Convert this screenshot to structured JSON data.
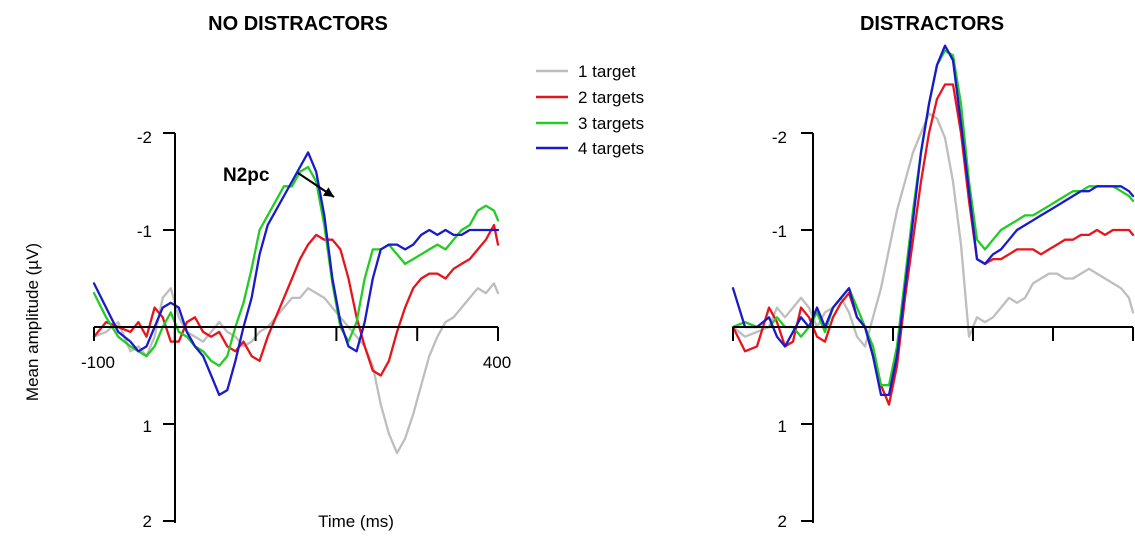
{
  "chart_data": [
    {
      "type": "line",
      "title": "NO DISTRACTORS",
      "xlabel": "Time (ms)",
      "ylabel": "Mean amplitude  (µV)",
      "xlim": [
        -100,
        400
      ],
      "ylim": [
        2,
        -2.5
      ],
      "y_axis_inverted": true,
      "xticks": [
        -100,
        0,
        100,
        200,
        300,
        400
      ],
      "xtick_labels": [
        "-100",
        "400"
      ],
      "yticks": [
        -2,
        -1,
        1,
        2
      ],
      "ytick_labels": [
        "-2",
        "-1",
        "1",
        "2"
      ],
      "annotations": [
        {
          "text": "N2pc",
          "points_to": {
            "x": 205,
            "y": -1.35
          }
        }
      ],
      "series": [
        {
          "name": "1 target",
          "color": "#bebebe",
          "x": [
            -100,
            -85,
            -70,
            -55,
            -45,
            -35,
            -25,
            -15,
            -5,
            5,
            15,
            25,
            35,
            45,
            55,
            65,
            75,
            85,
            95,
            105,
            115,
            125,
            135,
            145,
            155,
            165,
            175,
            185,
            195,
            205,
            215,
            225,
            235,
            245,
            255,
            265,
            275,
            285,
            295,
            305,
            315,
            325,
            335,
            345,
            355,
            365,
            375,
            385,
            395,
            400
          ],
          "y": [
            0.1,
            0.05,
            -0.05,
            0.25,
            0.2,
            0.3,
            0.1,
            -0.3,
            -0.4,
            -0.1,
            0.05,
            0.1,
            0.15,
            0.05,
            -0.05,
            0.05,
            0.1,
            0.2,
            0.15,
            0.05,
            0.0,
            -0.1,
            -0.2,
            -0.3,
            -0.3,
            -0.4,
            -0.35,
            -0.3,
            -0.2,
            -0.1,
            0.0,
            0.1,
            0.2,
            0.4,
            0.8,
            1.1,
            1.3,
            1.15,
            0.9,
            0.6,
            0.3,
            0.1,
            -0.05,
            -0.1,
            -0.2,
            -0.3,
            -0.4,
            -0.35,
            -0.45,
            -0.35
          ]
        },
        {
          "name": "2 targets",
          "color": "#e8141c",
          "x": [
            -100,
            -85,
            -70,
            -55,
            -45,
            -35,
            -25,
            -15,
            -5,
            5,
            15,
            25,
            35,
            45,
            55,
            65,
            75,
            85,
            95,
            105,
            115,
            125,
            135,
            145,
            155,
            165,
            175,
            185,
            195,
            205,
            215,
            225,
            235,
            245,
            255,
            265,
            275,
            285,
            295,
            305,
            315,
            325,
            335,
            345,
            355,
            365,
            375,
            385,
            395,
            400
          ],
          "y": [
            0.1,
            -0.05,
            0.0,
            0.05,
            -0.05,
            0.1,
            -0.2,
            -0.1,
            0.15,
            0.15,
            -0.05,
            -0.1,
            0.05,
            0.1,
            0.05,
            0.2,
            0.25,
            0.15,
            0.3,
            0.35,
            0.1,
            -0.1,
            -0.3,
            -0.5,
            -0.7,
            -0.85,
            -0.95,
            -0.9,
            -0.9,
            -0.8,
            -0.5,
            -0.1,
            0.2,
            0.45,
            0.5,
            0.35,
            0.05,
            -0.2,
            -0.4,
            -0.5,
            -0.55,
            -0.55,
            -0.5,
            -0.6,
            -0.65,
            -0.7,
            -0.8,
            -0.9,
            -1.05,
            -0.85
          ]
        },
        {
          "name": "3 targets",
          "color": "#22cc22",
          "x": [
            -100,
            -85,
            -70,
            -55,
            -45,
            -35,
            -25,
            -15,
            -5,
            5,
            15,
            25,
            35,
            45,
            55,
            65,
            75,
            85,
            95,
            105,
            115,
            125,
            135,
            145,
            155,
            165,
            175,
            185,
            195,
            205,
            215,
            225,
            235,
            245,
            255,
            265,
            275,
            285,
            295,
            305,
            315,
            325,
            335,
            345,
            355,
            365,
            375,
            385,
            395,
            400
          ],
          "y": [
            -0.35,
            -0.1,
            0.1,
            0.2,
            0.25,
            0.3,
            0.2,
            0.0,
            -0.15,
            0.05,
            0.1,
            0.2,
            0.25,
            0.35,
            0.4,
            0.3,
            0.0,
            -0.25,
            -0.6,
            -1.0,
            -1.15,
            -1.3,
            -1.45,
            -1.45,
            -1.6,
            -1.65,
            -1.5,
            -1.05,
            -0.45,
            0.0,
            0.15,
            -0.05,
            -0.5,
            -0.8,
            -0.8,
            -0.85,
            -0.75,
            -0.65,
            -0.7,
            -0.75,
            -0.8,
            -0.85,
            -0.8,
            -0.9,
            -1.0,
            -1.05,
            -1.2,
            -1.25,
            -1.2,
            -1.1
          ]
        },
        {
          "name": "4 targets",
          "color": "#1a1acc",
          "x": [
            -100,
            -85,
            -70,
            -55,
            -45,
            -35,
            -25,
            -15,
            -5,
            5,
            15,
            25,
            35,
            45,
            55,
            65,
            75,
            85,
            95,
            105,
            115,
            125,
            135,
            145,
            155,
            165,
            175,
            185,
            195,
            205,
            215,
            225,
            235,
            245,
            255,
            265,
            275,
            285,
            295,
            305,
            315,
            325,
            335,
            345,
            355,
            365,
            375,
            385,
            395,
            400
          ],
          "y": [
            -0.45,
            -0.2,
            0.05,
            0.15,
            0.25,
            0.2,
            0.0,
            -0.2,
            -0.25,
            -0.2,
            0.05,
            0.2,
            0.3,
            0.5,
            0.7,
            0.65,
            0.35,
            0.0,
            -0.3,
            -0.75,
            -1.05,
            -1.2,
            -1.35,
            -1.5,
            -1.65,
            -1.8,
            -1.6,
            -1.15,
            -0.5,
            -0.05,
            0.2,
            0.25,
            -0.05,
            -0.5,
            -0.8,
            -0.85,
            -0.85,
            -0.8,
            -0.85,
            -0.95,
            -1.0,
            -0.95,
            -1.0,
            -0.95,
            -0.95,
            -1.0,
            -1.0,
            -1.0,
            -1.0,
            -1.0
          ]
        }
      ]
    },
    {
      "type": "line",
      "title": "DISTRACTORS",
      "xlabel": "",
      "ylabel": "",
      "xlim": [
        -100,
        400
      ],
      "ylim": [
        2,
        -2.5
      ],
      "y_axis_inverted": true,
      "xticks": [
        -100,
        0,
        100,
        200,
        300,
        400
      ],
      "xtick_labels": [],
      "yticks": [
        -2,
        -1,
        1,
        2
      ],
      "ytick_labels": [
        "-2",
        "-1",
        "1",
        "2"
      ],
      "series": [
        {
          "name": "1 target",
          "color": "#bebebe",
          "x": [
            -100,
            -85,
            -70,
            -55,
            -45,
            -35,
            -25,
            -15,
            -5,
            5,
            15,
            25,
            35,
            45,
            55,
            65,
            75,
            85,
            95,
            105,
            115,
            125,
            135,
            145,
            155,
            165,
            175,
            185,
            195,
            205,
            215,
            225,
            235,
            245,
            255,
            265,
            275,
            285,
            295,
            305,
            315,
            325,
            335,
            345,
            355,
            365,
            375,
            385,
            395,
            400
          ],
          "y": [
            0.0,
            0.1,
            0.05,
            0.0,
            -0.2,
            -0.1,
            -0.2,
            -0.3,
            -0.2,
            0.0,
            -0.15,
            -0.2,
            -0.3,
            -0.15,
            0.1,
            0.2,
            -0.1,
            -0.4,
            -0.8,
            -1.2,
            -1.5,
            -1.8,
            -2.0,
            -2.2,
            -2.15,
            -1.95,
            -1.5,
            -0.85,
            0.1,
            -0.1,
            -0.05,
            -0.1,
            -0.2,
            -0.3,
            -0.25,
            -0.3,
            -0.45,
            -0.5,
            -0.55,
            -0.55,
            -0.5,
            -0.5,
            -0.55,
            -0.6,
            -0.55,
            -0.5,
            -0.45,
            -0.4,
            -0.3,
            -0.15
          ]
        },
        {
          "name": "2 targets",
          "color": "#e8141c",
          "x": [
            -100,
            -85,
            -70,
            -55,
            -45,
            -35,
            -25,
            -15,
            -5,
            5,
            15,
            25,
            35,
            45,
            55,
            65,
            75,
            85,
            95,
            105,
            115,
            125,
            135,
            145,
            155,
            165,
            175,
            185,
            195,
            205,
            215,
            225,
            235,
            245,
            255,
            265,
            275,
            285,
            295,
            305,
            315,
            325,
            335,
            345,
            355,
            365,
            375,
            385,
            395,
            400
          ],
          "y": [
            0.0,
            0.25,
            0.2,
            -0.2,
            -0.05,
            0.2,
            0.15,
            -0.2,
            -0.1,
            0.1,
            0.15,
            -0.1,
            -0.25,
            -0.35,
            -0.1,
            0.0,
            0.3,
            0.6,
            0.8,
            0.4,
            -0.3,
            -0.9,
            -1.5,
            -2.0,
            -2.35,
            -2.5,
            -2.5,
            -2.0,
            -1.3,
            -0.7,
            -0.65,
            -0.7,
            -0.7,
            -0.75,
            -0.8,
            -0.8,
            -0.8,
            -0.75,
            -0.8,
            -0.85,
            -0.9,
            -0.9,
            -0.95,
            -0.95,
            -1.0,
            -0.95,
            -1.0,
            -1.0,
            -1.0,
            -0.95
          ]
        },
        {
          "name": "3 targets",
          "color": "#22cc22",
          "x": [
            -100,
            -85,
            -70,
            -55,
            -45,
            -35,
            -25,
            -15,
            -5,
            5,
            15,
            25,
            35,
            45,
            55,
            65,
            75,
            85,
            95,
            105,
            115,
            125,
            135,
            145,
            155,
            165,
            175,
            185,
            195,
            205,
            215,
            225,
            235,
            245,
            255,
            265,
            275,
            285,
            295,
            305,
            315,
            325,
            335,
            345,
            355,
            365,
            375,
            385,
            395,
            400
          ],
          "y": [
            0.0,
            -0.05,
            0.0,
            0.0,
            -0.1,
            0.0,
            0.0,
            0.1,
            0.0,
            -0.15,
            0.05,
            -0.2,
            -0.3,
            -0.4,
            -0.2,
            0.0,
            0.2,
            0.6,
            0.6,
            0.2,
            -0.5,
            -1.2,
            -1.8,
            -2.3,
            -2.7,
            -2.85,
            -2.8,
            -2.3,
            -1.5,
            -0.9,
            -0.8,
            -0.9,
            -1.0,
            -1.05,
            -1.1,
            -1.15,
            -1.15,
            -1.2,
            -1.25,
            -1.3,
            -1.35,
            -1.4,
            -1.4,
            -1.45,
            -1.45,
            -1.45,
            -1.45,
            -1.4,
            -1.35,
            -1.3
          ]
        },
        {
          "name": "4 targets",
          "color": "#1a1acc",
          "x": [
            -100,
            -85,
            -70,
            -55,
            -45,
            -35,
            -25,
            -15,
            -5,
            5,
            15,
            25,
            35,
            45,
            55,
            65,
            75,
            85,
            95,
            105,
            115,
            125,
            135,
            145,
            155,
            165,
            175,
            185,
            195,
            205,
            215,
            225,
            235,
            245,
            255,
            265,
            275,
            285,
            295,
            305,
            315,
            325,
            335,
            345,
            355,
            365,
            375,
            385,
            395,
            400
          ],
          "y": [
            -0.4,
            0.0,
            0.0,
            -0.1,
            0.1,
            0.2,
            0.05,
            -0.1,
            0.0,
            -0.2,
            0.0,
            -0.2,
            -0.3,
            -0.4,
            -0.1,
            0.0,
            0.3,
            0.7,
            0.7,
            0.3,
            -0.4,
            -1.1,
            -1.8,
            -2.3,
            -2.7,
            -2.9,
            -2.75,
            -2.1,
            -1.4,
            -0.7,
            -0.65,
            -0.75,
            -0.8,
            -0.9,
            -1.0,
            -1.05,
            -1.1,
            -1.15,
            -1.2,
            -1.25,
            -1.3,
            -1.35,
            -1.4,
            -1.4,
            -1.45,
            -1.45,
            -1.45,
            -1.45,
            -1.4,
            -1.35
          ]
        }
      ]
    }
  ]
}
